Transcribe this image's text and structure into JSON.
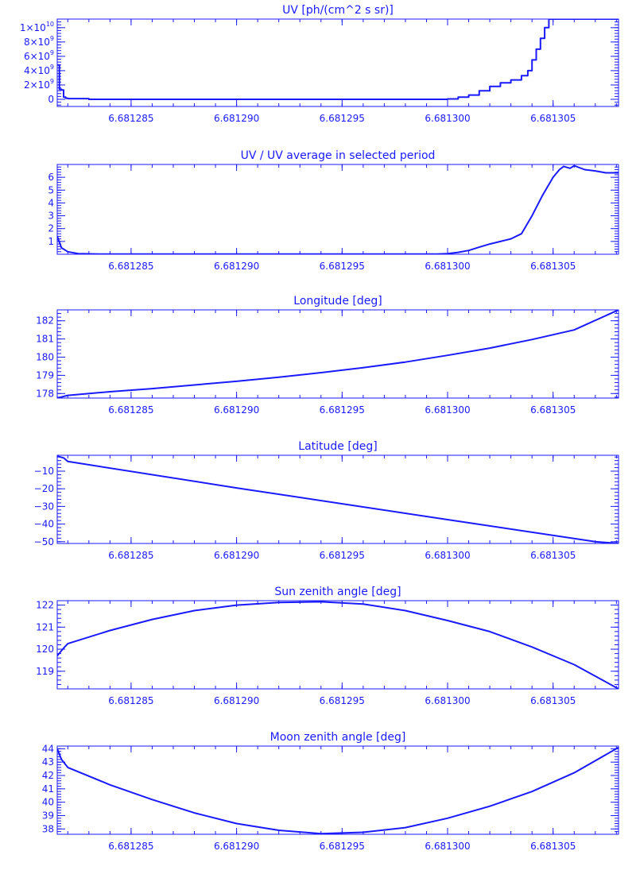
{
  "chart_data": [
    {
      "type": "line",
      "step": true,
      "title": "UV [ph/(cm^2 s sr)]",
      "xlabel": "",
      "ylabel": "",
      "xlim": [
        6.6812815,
        6.6813081
      ],
      "ylim": [
        -1000000000.0,
        11200000000.0
      ],
      "xticks": [
        "6.681285",
        "6.681290",
        "6.681295",
        "6.681300",
        "6.681305"
      ],
      "yticks": [
        {
          "v": 0,
          "base": "0",
          "exp": ""
        },
        {
          "v": 2000000000.0,
          "base": "2×10",
          "exp": "9"
        },
        {
          "v": 4000000000.0,
          "base": "4×10",
          "exp": "9"
        },
        {
          "v": 6000000000.0,
          "base": "6×10",
          "exp": "9"
        },
        {
          "v": 8000000000.0,
          "base": "8×10",
          "exp": "9"
        },
        {
          "v": 10000000000.0,
          "base": "1×10",
          "exp": "10"
        }
      ],
      "x": [
        6.6812815,
        6.6812816,
        6.6812817,
        6.6812818,
        6.6812819,
        6.681282,
        6.681283,
        6.681285,
        6.68129,
        6.681295,
        6.6812995,
        6.6813,
        6.6813005,
        6.681301,
        6.6813015,
        6.681302,
        6.6813025,
        6.681303,
        6.6813035,
        6.6813038,
        6.681304,
        6.6813042,
        6.6813044,
        6.6813046,
        6.6813048,
        6.681305,
        6.681306,
        6.681307,
        6.6813081
      ],
      "y": [
        4800000000.0,
        1400000000.0,
        1300000000.0,
        300000000.0,
        150000000.0,
        100000000.0,
        0,
        0,
        0,
        0,
        0,
        50000000.0,
        300000000.0,
        600000000.0,
        1200000000.0,
        1800000000.0,
        2300000000.0,
        2700000000.0,
        3300000000.0,
        4000000000.0,
        5500000000.0,
        7000000000.0,
        8500000000.0,
        10000000000.0,
        11200000000.0,
        12000000000.0,
        12000000000.0,
        12000000000.0,
        12000000000.0
      ]
    },
    {
      "type": "line",
      "title": "UV / UV average in selected period",
      "xlabel": "",
      "ylabel": "",
      "xlim": [
        6.6812815,
        6.6813081
      ],
      "ylim": [
        0,
        7
      ],
      "xticks": [
        "6.681285",
        "6.681290",
        "6.681295",
        "6.681300",
        "6.681305"
      ],
      "yticks": [
        {
          "v": 1,
          "base": "1",
          "exp": ""
        },
        {
          "v": 2,
          "base": "2",
          "exp": ""
        },
        {
          "v": 3,
          "base": "3",
          "exp": ""
        },
        {
          "v": 4,
          "base": "4",
          "exp": ""
        },
        {
          "v": 5,
          "base": "5",
          "exp": ""
        },
        {
          "v": 6,
          "base": "6",
          "exp": ""
        }
      ],
      "x": [
        6.6812815,
        6.6812817,
        6.681282,
        6.6812825,
        6.6812835,
        6.681285,
        6.68129,
        6.681295,
        6.6812995,
        6.6813,
        6.6813005,
        6.681301,
        6.6813015,
        6.681302,
        6.6813025,
        6.681303,
        6.6813035,
        6.681304,
        6.6813045,
        6.681305,
        6.6813053,
        6.6813055,
        6.6813058,
        6.681306,
        6.6813065,
        6.681307,
        6.6813075,
        6.6813081
      ],
      "y": [
        1.4,
        0.5,
        0.2,
        0.05,
        0.02,
        0.02,
        0.02,
        0.02,
        0.02,
        0.05,
        0.15,
        0.3,
        0.55,
        0.8,
        1.0,
        1.2,
        1.6,
        3.0,
        4.6,
        6.0,
        6.6,
        6.85,
        6.7,
        6.9,
        6.6,
        6.5,
        6.35,
        6.35
      ]
    },
    {
      "type": "line",
      "title": "Longitude [deg]",
      "xlabel": "",
      "ylabel": "",
      "xlim": [
        6.6812815,
        6.6813081
      ],
      "ylim": [
        177.75,
        182.6
      ],
      "xticks": [
        "6.681285",
        "6.681290",
        "6.681295",
        "6.681300",
        "6.681305"
      ],
      "yticks": [
        {
          "v": 178,
          "base": "178",
          "exp": ""
        },
        {
          "v": 179,
          "base": "179",
          "exp": ""
        },
        {
          "v": 180,
          "base": "180",
          "exp": ""
        },
        {
          "v": 181,
          "base": "181",
          "exp": ""
        },
        {
          "v": 182,
          "base": "182",
          "exp": ""
        }
      ],
      "x": [
        6.6812815,
        6.681282,
        6.681284,
        6.681286,
        6.681288,
        6.68129,
        6.681292,
        6.681294,
        6.681296,
        6.681298,
        6.6813,
        6.681302,
        6.681304,
        6.681306,
        6.6813081
      ],
      "y": [
        177.75,
        177.9,
        178.1,
        178.27,
        178.47,
        178.67,
        178.9,
        179.15,
        179.42,
        179.73,
        180.1,
        180.5,
        180.97,
        181.5,
        182.6
      ]
    },
    {
      "type": "line",
      "title": "Latitude [deg]",
      "xlabel": "",
      "ylabel": "",
      "xlim": [
        6.6812815,
        6.6813081
      ],
      "ylim": [
        -51,
        -1
      ],
      "xticks": [
        "6.681285",
        "6.681290",
        "6.681295",
        "6.681300",
        "6.681305"
      ],
      "yticks": [
        {
          "v": -50,
          "base": "−50",
          "exp": ""
        },
        {
          "v": -40,
          "base": "−40",
          "exp": ""
        },
        {
          "v": -30,
          "base": "−30",
          "exp": ""
        },
        {
          "v": -20,
          "base": "−20",
          "exp": ""
        },
        {
          "v": -10,
          "base": "−10",
          "exp": ""
        }
      ],
      "x": [
        6.6812815,
        6.6812818,
        6.681282,
        6.68129,
        6.6813,
        6.681307,
        6.6813081
      ],
      "y": [
        -1.5,
        -2.5,
        -4.5,
        -19.5,
        -37.5,
        -50,
        -51
      ]
    },
    {
      "type": "line",
      "title": "Sun zenith angle [deg]",
      "xlabel": "",
      "ylabel": "",
      "xlim": [
        6.6812815,
        6.6813081
      ],
      "ylim": [
        118.2,
        122.2
      ],
      "xticks": [
        "6.681285",
        "6.681290",
        "6.681295",
        "6.681300",
        "6.681305"
      ],
      "yticks": [
        {
          "v": 119,
          "base": "119",
          "exp": ""
        },
        {
          "v": 120,
          "base": "120",
          "exp": ""
        },
        {
          "v": 121,
          "base": "121",
          "exp": ""
        },
        {
          "v": 122,
          "base": "122",
          "exp": ""
        }
      ],
      "x": [
        6.6812815,
        6.6812818,
        6.681282,
        6.681284,
        6.681286,
        6.681288,
        6.68129,
        6.681292,
        6.681294,
        6.681296,
        6.681298,
        6.6813,
        6.681302,
        6.681304,
        6.681306,
        6.6813081
      ],
      "y": [
        119.7,
        120.05,
        120.25,
        120.85,
        121.35,
        121.75,
        122.0,
        122.12,
        122.15,
        122.05,
        121.75,
        121.3,
        120.8,
        120.1,
        119.3,
        118.2
      ]
    },
    {
      "type": "line",
      "title": "Moon zenith angle [deg]",
      "xlabel": "",
      "ylabel": "",
      "xlim": [
        6.6812815,
        6.6813081
      ],
      "ylim": [
        37.6,
        44.2
      ],
      "xticks": [
        "6.681285",
        "6.681290",
        "6.681295",
        "6.681300",
        "6.681305"
      ],
      "yticks": [
        {
          "v": 38,
          "base": "38",
          "exp": ""
        },
        {
          "v": 39,
          "base": "39",
          "exp": ""
        },
        {
          "v": 40,
          "base": "40",
          "exp": ""
        },
        {
          "v": 41,
          "base": "41",
          "exp": ""
        },
        {
          "v": 42,
          "base": "42",
          "exp": ""
        },
        {
          "v": 43,
          "base": "43",
          "exp": ""
        },
        {
          "v": 44,
          "base": "44",
          "exp": ""
        }
      ],
      "x": [
        6.6812815,
        6.6812817,
        6.681282,
        6.681284,
        6.681286,
        6.681288,
        6.68129,
        6.681292,
        6.681294,
        6.681296,
        6.681298,
        6.6813,
        6.681302,
        6.681304,
        6.681306,
        6.6813081
      ],
      "y": [
        44.0,
        43.2,
        42.6,
        41.3,
        40.2,
        39.2,
        38.4,
        37.9,
        37.65,
        37.75,
        38.1,
        38.8,
        39.7,
        40.8,
        42.2,
        44.1
      ]
    }
  ]
}
